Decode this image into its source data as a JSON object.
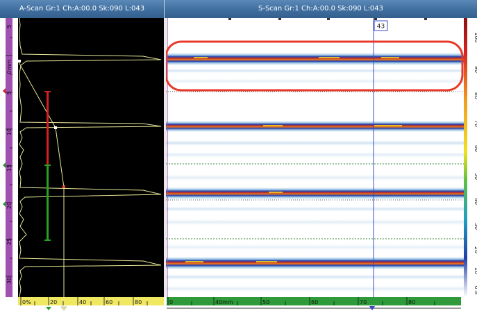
{
  "ascan": {
    "title": "A-Scan Gr:1 Ch:A:00.0 Sk:090 L:043",
    "depth_ticks": [
      "5",
      "0mm",
      "5",
      "10",
      "15",
      "20",
      "25",
      "30"
    ],
    "amplitude_ticks": [
      "0%",
      "20",
      "40",
      "60",
      "80"
    ]
  },
  "sscan": {
    "title": "S-Scan Gr:1 Ch:A:00.0 Sk:090 L:043",
    "cursor_label": "43",
    "index_ticks": [
      "0",
      "40mm",
      "50",
      "60",
      "70",
      "80"
    ],
    "color_scale_ticks": [
      "100",
      "90",
      "80",
      "70",
      "60",
      "50",
      "40",
      "30",
      "20",
      "10",
      "0%"
    ]
  },
  "colors": {
    "title_bar": "#4a7aa8",
    "ascan_bg": "#000000",
    "echo_trace": "#e8e89a",
    "gate_red": "#d42020",
    "gate_green": "#28a028",
    "ruler_purple": "#a050b0",
    "highlight_ellipse": "#e83a2a",
    "cursor_line": "#3848c8"
  }
}
